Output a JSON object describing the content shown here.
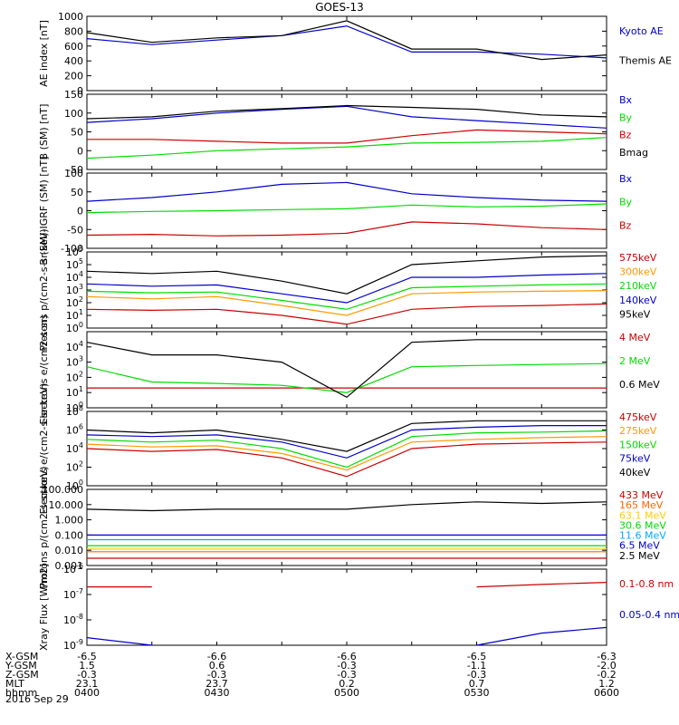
{
  "title": "GOES-13",
  "date": "2016 Sep 29",
  "x_axis": {
    "row_labels": [
      "X-GSM",
      "Y-GSM",
      "Z-GSM",
      "MLT",
      "hhmm"
    ],
    "columns": [
      {
        "values": [
          "-6.5",
          "1.5",
          "-0.3",
          "23.1",
          "0400"
        ]
      },
      {
        "values": [
          "-6.6",
          "0.6",
          "-0.3",
          "23.7",
          "0430"
        ]
      },
      {
        "values": [
          "-6.6",
          "-0.3",
          "-0.3",
          "0.2",
          "0500"
        ]
      },
      {
        "values": [
          "-6.5",
          "-1.1",
          "-0.3",
          "0.7",
          "0530"
        ]
      },
      {
        "values": [
          "-6.3",
          "-2.0",
          "-0.2",
          "1.2",
          "0600"
        ]
      }
    ]
  },
  "chart_data": [
    {
      "type": "line",
      "ylabel": "AE index [nT]",
      "ylim": [
        0,
        1000
      ],
      "yscale": "linear",
      "yticks": [
        "0",
        "200",
        "400",
        "600",
        "800",
        "1000"
      ],
      "x": [
        "0400",
        "0415",
        "0430",
        "0445",
        "0500",
        "0515",
        "0530",
        "0545",
        "0600"
      ],
      "series": [
        {
          "name": "Kyoto AE",
          "color": "#0000cc",
          "values": [
            700,
            620,
            680,
            740,
            870,
            520,
            520,
            490,
            440
          ]
        },
        {
          "name": "Themis AE",
          "color": "#000000",
          "values": [
            780,
            650,
            710,
            740,
            940,
            560,
            560,
            420,
            480
          ]
        }
      ]
    },
    {
      "type": "line",
      "ylabel": "B (SM) [nT]",
      "ylim": [
        -50,
        150
      ],
      "yscale": "linear",
      "yticks": [
        "-50",
        "0",
        "50",
        "100",
        "150"
      ],
      "x": [
        "0400",
        "0415",
        "0430",
        "0445",
        "0500",
        "0515",
        "0530",
        "0545",
        "0600"
      ],
      "series": [
        {
          "name": "Bx",
          "color": "#0000cc",
          "values": [
            75,
            85,
            100,
            110,
            118,
            90,
            80,
            70,
            60
          ]
        },
        {
          "name": "By",
          "color": "#00dd00",
          "values": [
            -20,
            -12,
            0,
            5,
            10,
            20,
            22,
            25,
            35
          ]
        },
        {
          "name": "Bz",
          "color": "#cc0000",
          "values": [
            30,
            30,
            25,
            20,
            20,
            40,
            55,
            50,
            45
          ]
        },
        {
          "name": "Bmag",
          "color": "#000000",
          "values": [
            85,
            90,
            105,
            112,
            120,
            115,
            110,
            95,
            90
          ]
        }
      ]
    },
    {
      "type": "line",
      "ylabel": "B (SM)-IGRF (SM) [nT]",
      "ylim": [
        -100,
        100
      ],
      "yscale": "linear",
      "yticks": [
        "-100",
        "-50",
        "0",
        "50",
        "100"
      ],
      "x": [
        "0400",
        "0415",
        "0430",
        "0445",
        "0500",
        "0515",
        "0530",
        "0545",
        "0600"
      ],
      "series": [
        {
          "name": "Bx",
          "color": "#0000cc",
          "values": [
            25,
            35,
            50,
            70,
            75,
            45,
            35,
            28,
            25
          ]
        },
        {
          "name": "By",
          "color": "#00dd00",
          "values": [
            -5,
            -2,
            0,
            3,
            5,
            15,
            10,
            12,
            18
          ]
        },
        {
          "name": "Bz",
          "color": "#cc0000",
          "values": [
            -65,
            -63,
            -67,
            -65,
            -60,
            -30,
            -35,
            -45,
            -50
          ]
        }
      ]
    },
    {
      "type": "line",
      "ylabel": "Protons p/(cm2-s-sr-keV)",
      "ylim": [
        1,
        1000000
      ],
      "yscale": "log",
      "yticks": [
        "10^0",
        "10^1",
        "10^2",
        "10^3",
        "10^4",
        "10^5",
        "10^6"
      ],
      "x": [
        "0400",
        "0415",
        "0430",
        "0445",
        "0500",
        "0515",
        "0530",
        "0545",
        "0600"
      ],
      "series": [
        {
          "name": "575keV",
          "color": "#cc0000",
          "values": [
            30,
            25,
            30,
            10,
            2,
            30,
            50,
            60,
            80
          ]
        },
        {
          "name": "300keV",
          "color": "#ff9900",
          "values": [
            300,
            200,
            300,
            60,
            10,
            500,
            700,
            800,
            900
          ]
        },
        {
          "name": "210keV",
          "color": "#00dd00",
          "values": [
            800,
            600,
            700,
            150,
            30,
            1500,
            2000,
            2500,
            3000
          ]
        },
        {
          "name": "140keV",
          "color": "#0000cc",
          "values": [
            3000,
            2000,
            2500,
            500,
            100,
            10000,
            10000,
            15000,
            20000
          ]
        },
        {
          "name": "95keV",
          "color": "#000000",
          "values": [
            30000,
            20000,
            30000,
            5000,
            500,
            100000,
            200000,
            400000,
            500000
          ]
        }
      ]
    },
    {
      "type": "line",
      "ylabel": "Electrons e/(cm2-s-sr)",
      "ylim": [
        1,
        100000
      ],
      "yscale": "log",
      "yticks": [
        "10^0",
        "10^1",
        "10^2",
        "10^3",
        "10^4"
      ],
      "x": [
        "0400",
        "0415",
        "0430",
        "0445",
        "0500",
        "0515",
        "0530",
        "0545",
        "0600"
      ],
      "series": [
        {
          "name": "4 MeV",
          "color": "#cc0000",
          "values": [
            20,
            20,
            20,
            20,
            20,
            20,
            20,
            20,
            20
          ]
        },
        {
          "name": "2 MeV",
          "color": "#00dd00",
          "values": [
            500,
            50,
            40,
            30,
            10,
            500,
            600,
            700,
            800
          ]
        },
        {
          "name": "0.6 MeV",
          "color": "#000000",
          "values": [
            20000,
            3000,
            3000,
            1000,
            5,
            20000,
            30000,
            30000,
            30000
          ]
        }
      ]
    },
    {
      "type": "line",
      "ylabel": "Electrons e/(cm2-s-sr-keV)",
      "ylim": [
        1,
        100000000
      ],
      "yscale": "log",
      "yticks": [
        "10^0",
        "10^2",
        "10^4",
        "10^6",
        "10^8"
      ],
      "x": [
        "0400",
        "0415",
        "0430",
        "0445",
        "0500",
        "0515",
        "0530",
        "0545",
        "0600"
      ],
      "series": [
        {
          "name": "475keV",
          "color": "#cc0000",
          "values": [
            10000,
            5000,
            8000,
            1000,
            10,
            10000,
            30000,
            40000,
            50000
          ]
        },
        {
          "name": "275keV",
          "color": "#ff9900",
          "values": [
            30000,
            15000,
            20000,
            3000,
            50,
            50000,
            100000,
            150000,
            200000
          ]
        },
        {
          "name": "150keV",
          "color": "#00dd00",
          "values": [
            100000,
            50000,
            80000,
            10000,
            100,
            200000,
            500000,
            600000,
            800000
          ]
        },
        {
          "name": "75keV",
          "color": "#0000cc",
          "values": [
            300000,
            200000,
            300000,
            50000,
            1000,
            1000000,
            2000000,
            3000000,
            3000000
          ]
        },
        {
          "name": "40keV",
          "color": "#000000",
          "values": [
            1000000,
            500000,
            1000000,
            100000,
            5000,
            5000000,
            10000000,
            10000000,
            10000000
          ]
        }
      ]
    },
    {
      "type": "line",
      "ylabel": "Protons p/(cm2-s-sr-keV)",
      "ylim": [
        0.001,
        100
      ],
      "yscale": "log",
      "yticks": [
        "0.001",
        "0.010",
        "0.100",
        "1.000",
        "10.000",
        "100.000"
      ],
      "x": [
        "0400",
        "0415",
        "0430",
        "0445",
        "0500",
        "0515",
        "0530",
        "0545",
        "0600"
      ],
      "series": [
        {
          "name": "433 MeV",
          "color": "#cc0000",
          "values": [
            0.003,
            0.003,
            0.003,
            0.003,
            0.003,
            0.003,
            0.003,
            0.003,
            0.003
          ]
        },
        {
          "name": "165 MeV",
          "color": "#ff6600",
          "values": [
            0.008,
            0.008,
            0.008,
            0.008,
            0.008,
            0.008,
            0.008,
            0.008,
            0.008
          ]
        },
        {
          "name": "63.1 MeV",
          "color": "#ffcc00",
          "values": [
            0.012,
            0.012,
            0.012,
            0.012,
            0.012,
            0.012,
            0.012,
            0.012,
            0.012
          ]
        },
        {
          "name": "30.6 MeV",
          "color": "#00dd00",
          "values": [
            0.02,
            0.02,
            0.02,
            0.02,
            0.02,
            0.02,
            0.02,
            0.02,
            0.02
          ]
        },
        {
          "name": "11.6 MeV",
          "color": "#00aaff",
          "values": [
            0.05,
            0.05,
            0.05,
            0.05,
            0.05,
            0.05,
            0.05,
            0.05,
            0.05
          ]
        },
        {
          "name": "6.5 MeV",
          "color": "#0000cc",
          "values": [
            0.1,
            0.1,
            0.1,
            0.1,
            0.1,
            0.1,
            0.1,
            0.1,
            0.1
          ]
        },
        {
          "name": "2.5 MeV",
          "color": "#000000",
          "values": [
            5,
            4,
            5,
            5,
            5,
            10,
            15,
            12,
            15
          ]
        }
      ]
    },
    {
      "type": "line",
      "ylabel": "Xray Flux [W/m2]",
      "ylim": [
        1e-09,
        1e-06
      ],
      "yscale": "log",
      "yticks": [
        "10^-9",
        "10^-8",
        "10^-7",
        "10^-6"
      ],
      "x": [
        "0400",
        "0415",
        "0430",
        "0445",
        "0500",
        "0515",
        "0530",
        "0545",
        "0600"
      ],
      "series": [
        {
          "name": "0.1-0.8 nm",
          "color": "#cc0000",
          "values": [
            2e-07,
            2e-07,
            null,
            null,
            null,
            null,
            2e-07,
            2.5e-07,
            3e-07
          ]
        },
        {
          "name": "0.05-0.4 nm",
          "color": "#0000cc",
          "values": [
            2e-09,
            1e-09,
            null,
            null,
            null,
            null,
            1e-09,
            3e-09,
            5e-09
          ]
        }
      ]
    }
  ]
}
